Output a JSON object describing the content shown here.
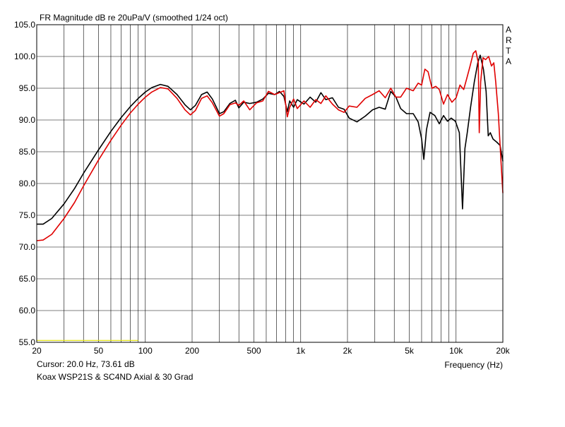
{
  "chart_data": {
    "type": "line",
    "title": "FR Magnitude dB re 20uPa/V (smoothed 1/24 oct)",
    "watermark": "ARTA",
    "xlabel": "Frequency (Hz)",
    "x_scale": "log",
    "xlim": [
      20,
      20000
    ],
    "ylim": [
      55,
      105
    ],
    "grid": true,
    "x_tick_labels": [
      {
        "value": 20,
        "label": "20"
      },
      {
        "value": 50,
        "label": "50"
      },
      {
        "value": 100,
        "label": "100"
      },
      {
        "value": 200,
        "label": "200"
      },
      {
        "value": 500,
        "label": "500"
      },
      {
        "value": 1000,
        "label": "1k"
      },
      {
        "value": 2000,
        "label": "2k"
      },
      {
        "value": 5000,
        "label": "5k"
      },
      {
        "value": 10000,
        "label": "10k"
      },
      {
        "value": 20000,
        "label": "20k"
      }
    ],
    "y_tick_labels": [
      {
        "value": 105,
        "label": "105.0"
      },
      {
        "value": 100,
        "label": "100.0"
      },
      {
        "value": 95,
        "label": "95.0"
      },
      {
        "value": 90,
        "label": "90.0"
      },
      {
        "value": 85,
        "label": "85.0"
      },
      {
        "value": 80,
        "label": "80.0"
      },
      {
        "value": 75,
        "label": "75.0"
      },
      {
        "value": 70,
        "label": "70.0"
      },
      {
        "value": 65,
        "label": "65.0"
      },
      {
        "value": 60,
        "label": "60.0"
      },
      {
        "value": 55,
        "label": "55.0"
      }
    ],
    "series": [
      {
        "color": "#000000",
        "points": [
          [
            20,
            73.6
          ],
          [
            22,
            73.6
          ],
          [
            25,
            74.5
          ],
          [
            30,
            76.8
          ],
          [
            35,
            79.2
          ],
          [
            40,
            81.6
          ],
          [
            50,
            85.3
          ],
          [
            60,
            88.2
          ],
          [
            70,
            90.4
          ],
          [
            80,
            92.1
          ],
          [
            90,
            93.4
          ],
          [
            100,
            94.4
          ],
          [
            110,
            95.1
          ],
          [
            125,
            95.6
          ],
          [
            140,
            95.3
          ],
          [
            160,
            94.0
          ],
          [
            180,
            92.4
          ],
          [
            195,
            91.6
          ],
          [
            210,
            92.3
          ],
          [
            230,
            94.0
          ],
          [
            250,
            94.4
          ],
          [
            270,
            93.3
          ],
          [
            300,
            91.0
          ],
          [
            320,
            91.3
          ],
          [
            350,
            92.6
          ],
          [
            380,
            93.1
          ],
          [
            400,
            91.9
          ],
          [
            430,
            92.8
          ],
          [
            470,
            92.6
          ],
          [
            520,
            92.8
          ],
          [
            570,
            93.3
          ],
          [
            620,
            94.2
          ],
          [
            680,
            94.0
          ],
          [
            730,
            94.5
          ],
          [
            780,
            93.7
          ],
          [
            820,
            91.3
          ],
          [
            850,
            93.0
          ],
          [
            900,
            92.0
          ],
          [
            950,
            93.2
          ],
          [
            1050,
            92.5
          ],
          [
            1150,
            93.6
          ],
          [
            1250,
            92.8
          ],
          [
            1350,
            94.3
          ],
          [
            1450,
            93.2
          ],
          [
            1600,
            93.5
          ],
          [
            1750,
            92.0
          ],
          [
            1900,
            91.7
          ],
          [
            2050,
            90.3
          ],
          [
            2300,
            89.7
          ],
          [
            2600,
            90.6
          ],
          [
            2900,
            91.6
          ],
          [
            3200,
            92.0
          ],
          [
            3500,
            91.7
          ],
          [
            3800,
            94.5
          ],
          [
            4100,
            93.6
          ],
          [
            4400,
            91.8
          ],
          [
            4800,
            91.0
          ],
          [
            5300,
            91.0
          ],
          [
            5700,
            89.7
          ],
          [
            6000,
            87.0
          ],
          [
            6200,
            83.8
          ],
          [
            6450,
            88.5
          ],
          [
            6800,
            91.2
          ],
          [
            7300,
            90.7
          ],
          [
            7800,
            89.4
          ],
          [
            8300,
            90.7
          ],
          [
            8800,
            89.8
          ],
          [
            9300,
            90.3
          ],
          [
            9900,
            89.8
          ],
          [
            10500,
            88.0
          ],
          [
            11000,
            76.0
          ],
          [
            11400,
            85.5
          ],
          [
            11800,
            88.0
          ],
          [
            12400,
            92.0
          ],
          [
            13100,
            96.0
          ],
          [
            13800,
            99.0
          ],
          [
            14300,
            100.2
          ],
          [
            15000,
            98.0
          ],
          [
            15600,
            94.5
          ],
          [
            16100,
            87.5
          ],
          [
            16600,
            88.0
          ],
          [
            17300,
            87.0
          ],
          [
            18300,
            86.5
          ],
          [
            19200,
            86.0
          ],
          [
            20000,
            83.5
          ]
        ]
      },
      {
        "color": "#e00000",
        "points": [
          [
            20,
            71.0
          ],
          [
            22,
            71.1
          ],
          [
            25,
            72.0
          ],
          [
            30,
            74.5
          ],
          [
            35,
            77.0
          ],
          [
            40,
            79.6
          ],
          [
            50,
            83.7
          ],
          [
            60,
            86.8
          ],
          [
            70,
            89.2
          ],
          [
            80,
            91.1
          ],
          [
            90,
            92.5
          ],
          [
            100,
            93.6
          ],
          [
            110,
            94.4
          ],
          [
            125,
            95.1
          ],
          [
            140,
            94.9
          ],
          [
            160,
            93.4
          ],
          [
            180,
            91.6
          ],
          [
            195,
            90.8
          ],
          [
            210,
            91.5
          ],
          [
            230,
            93.4
          ],
          [
            250,
            93.8
          ],
          [
            270,
            92.7
          ],
          [
            300,
            90.6
          ],
          [
            320,
            91.0
          ],
          [
            350,
            92.4
          ],
          [
            380,
            92.7
          ],
          [
            400,
            92.3
          ],
          [
            430,
            93.0
          ],
          [
            470,
            91.6
          ],
          [
            520,
            92.7
          ],
          [
            570,
            93.0
          ],
          [
            620,
            94.5
          ],
          [
            680,
            94.0
          ],
          [
            730,
            94.3
          ],
          [
            780,
            94.6
          ],
          [
            820,
            90.5
          ],
          [
            850,
            92.0
          ],
          [
            900,
            93.3
          ],
          [
            950,
            91.8
          ],
          [
            1050,
            93.0
          ],
          [
            1150,
            92.0
          ],
          [
            1250,
            93.2
          ],
          [
            1350,
            92.6
          ],
          [
            1450,
            93.8
          ],
          [
            1600,
            92.5
          ],
          [
            1750,
            91.6
          ],
          [
            1900,
            91.2
          ],
          [
            2050,
            92.2
          ],
          [
            2300,
            92.0
          ],
          [
            2600,
            93.4
          ],
          [
            2900,
            94.0
          ],
          [
            3200,
            94.6
          ],
          [
            3500,
            93.5
          ],
          [
            3800,
            95.0
          ],
          [
            4100,
            93.6
          ],
          [
            4400,
            93.6
          ],
          [
            4800,
            95.0
          ],
          [
            5300,
            94.6
          ],
          [
            5700,
            95.8
          ],
          [
            6000,
            95.5
          ],
          [
            6300,
            98.0
          ],
          [
            6600,
            97.6
          ],
          [
            7000,
            95.0
          ],
          [
            7400,
            95.3
          ],
          [
            7800,
            94.8
          ],
          [
            8300,
            92.5
          ],
          [
            8800,
            94.0
          ],
          [
            9400,
            92.8
          ],
          [
            10000,
            93.5
          ],
          [
            10600,
            95.5
          ],
          [
            11200,
            94.8
          ],
          [
            11700,
            96.5
          ],
          [
            12300,
            98.5
          ],
          [
            12900,
            100.5
          ],
          [
            13400,
            100.9
          ],
          [
            13900,
            99.0
          ],
          [
            14100,
            88.0
          ],
          [
            14400,
            96.0
          ],
          [
            14900,
            99.8
          ],
          [
            15500,
            99.5
          ],
          [
            16200,
            100.0
          ],
          [
            16900,
            98.5
          ],
          [
            17500,
            99.0
          ],
          [
            18000,
            96.0
          ],
          [
            18700,
            91.0
          ],
          [
            19400,
            84.0
          ],
          [
            20000,
            78.5
          ]
        ]
      },
      {
        "color": "#e0e000",
        "points": [
          [
            20,
            55.3
          ],
          [
            90,
            55.3
          ]
        ]
      }
    ]
  },
  "footer": {
    "cursor_readout": "Cursor: 20.0 Hz, 73.61 dB",
    "caption": "Koax WSP21S & SC4ND Axial & 30 Grad"
  }
}
